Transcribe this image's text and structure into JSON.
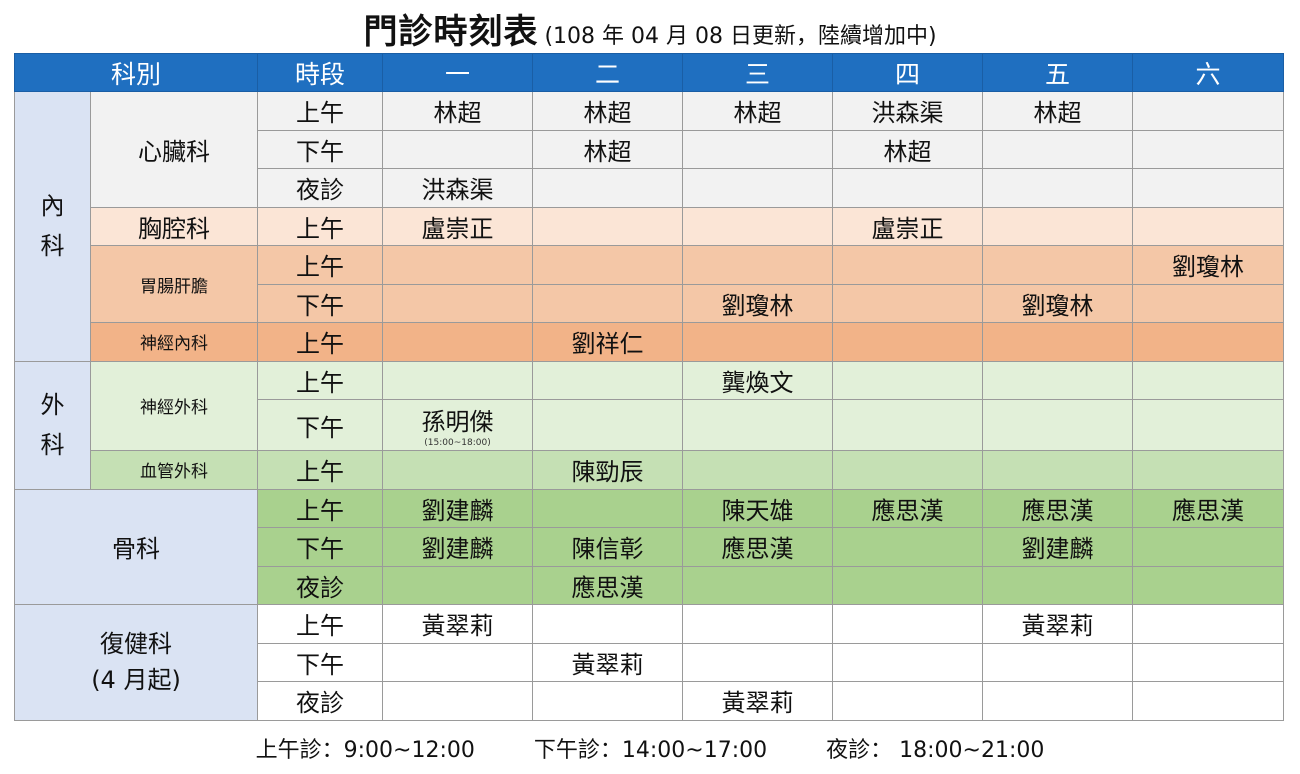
{
  "title": {
    "main": "門診時刻表",
    "sub": "(108 年 04 月 08 日更新，陸續增加中)"
  },
  "headers": {
    "dept": "科別",
    "period": "時段",
    "days": [
      "一",
      "二",
      "三",
      "四",
      "五",
      "六"
    ]
  },
  "sections": {
    "internal": "內\n科",
    "surgery": "外\n科",
    "ortho": "骨科",
    "rehab": "復健科\n(4 月起)"
  },
  "depts": {
    "cardio": "心臟科",
    "chest": "胸腔科",
    "gi": "胃腸肝膽",
    "neuro_med": "神經內科",
    "neuro_surg": "神經外科",
    "vascular": "血管外科"
  },
  "periods": {
    "am": "上午",
    "pm": "下午",
    "night": "夜診"
  },
  "schedule": {
    "cardio_am": [
      "林超",
      "林超",
      "林超",
      "洪森渠",
      "林超",
      ""
    ],
    "cardio_pm": [
      "",
      "林超",
      "",
      "林超",
      "",
      ""
    ],
    "cardio_night": [
      "洪森渠",
      "",
      "",
      "",
      "",
      ""
    ],
    "chest_am": [
      "盧崇正",
      "",
      "",
      "盧崇正",
      "",
      ""
    ],
    "gi_am": [
      "",
      "",
      "",
      "",
      "",
      "劉瓊林"
    ],
    "gi_pm": [
      "",
      "",
      "劉瓊林",
      "",
      "劉瓊林",
      ""
    ],
    "neuro_med_am": [
      "",
      "劉祥仁",
      "",
      "",
      "",
      ""
    ],
    "neuro_surg_am": [
      "",
      "",
      "龔煥文",
      "",
      "",
      ""
    ],
    "neuro_surg_pm": [
      "孫明傑",
      "",
      "",
      "",
      "",
      ""
    ],
    "neuro_surg_pm_note": "(15:00~18:00)",
    "vascular_am": [
      "",
      "陳勁辰",
      "",
      "",
      "",
      ""
    ],
    "ortho_am": [
      "劉建麟",
      "",
      "陳天雄",
      "應思漢",
      "應思漢",
      "應思漢"
    ],
    "ortho_pm": [
      "劉建麟",
      "陳信彰",
      "應思漢",
      "",
      "劉建麟",
      ""
    ],
    "ortho_night": [
      "",
      "應思漢",
      "",
      "",
      "",
      ""
    ],
    "rehab_am": [
      "黃翠莉",
      "",
      "",
      "",
      "黃翠莉",
      ""
    ],
    "rehab_pm": [
      "",
      "黃翠莉",
      "",
      "",
      "",
      ""
    ],
    "rehab_night": [
      "",
      "",
      "黃翠莉",
      "",
      "",
      ""
    ]
  },
  "footer": {
    "am": "上午診：9:00~12:00",
    "pm": "下午診：14:00~17:00",
    "night": "夜診： 18:00~21:00"
  },
  "colors": {
    "header": "#1f6fc0",
    "section": "#dae3f3",
    "cardio": "#f2f2f2",
    "chest": "#fbe5d6",
    "gi": "#f4c7a7",
    "neuro_med": "#f2b388",
    "neuro_surg": "#e2f0d9",
    "vascular": "#c5e0b4",
    "ortho": "#a9d18e"
  }
}
